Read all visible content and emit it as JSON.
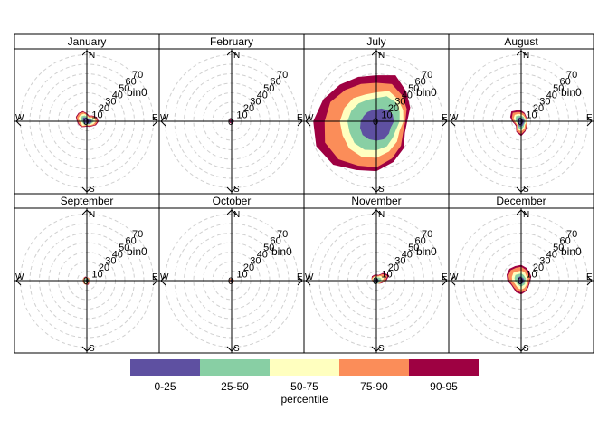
{
  "chart_data": {
    "type": "polar_percentile_rose",
    "panels": [
      {
        "title": "January",
        "compass": {
          "n": "N",
          "e": "E",
          "s": "S",
          "w": "W"
        },
        "radial_ticks": [
          "0",
          "10",
          "20",
          "30",
          "40",
          "50",
          "60",
          "70"
        ],
        "bin_label": "bin0",
        "bands": [
          {
            "band": "0-25",
            "radii": [
              3,
              2,
              3,
              4,
              5,
              4,
              3,
              2,
              2,
              2,
              3,
              3,
              3,
              4,
              5,
              4
            ]
          },
          {
            "band": "25-50",
            "radii": [
              4,
              3,
              4,
              6,
              7,
              5,
              4,
              3,
              3,
              3,
              4,
              4,
              5,
              6,
              7,
              6
            ]
          },
          {
            "band": "50-75",
            "radii": [
              6,
              4,
              5,
              8,
              9,
              7,
              5,
              4,
              3,
              4,
              6,
              6,
              7,
              9,
              9,
              8
            ]
          },
          {
            "band": "75-90",
            "radii": [
              7,
              5,
              7,
              10,
              11,
              9,
              6,
              5,
              4,
              5,
              7,
              8,
              9,
              11,
              11,
              10
            ]
          },
          {
            "band": "90-95",
            "radii": [
              8,
              6,
              8,
              11,
              12,
              10,
              7,
              6,
              5,
              6,
              8,
              9,
              10,
              12,
              12,
              11
            ]
          }
        ]
      },
      {
        "title": "February",
        "compass": {
          "n": "N",
          "e": "E",
          "s": "S",
          "w": "W"
        },
        "radial_ticks": [
          "0",
          "10",
          "20",
          "30",
          "40",
          "50",
          "60",
          "70"
        ],
        "bin_label": "",
        "bands": [
          {
            "band": "0-25",
            "radii": [
              1,
              1,
              1,
              1,
              1,
              1,
              1,
              1,
              1,
              1,
              1,
              1,
              1,
              1,
              1,
              1
            ]
          },
          {
            "band": "25-50",
            "radii": [
              1,
              1,
              1,
              1,
              1,
              1,
              1,
              1,
              1,
              1,
              1,
              1,
              1,
              1,
              1,
              1
            ]
          },
          {
            "band": "50-75",
            "radii": [
              1,
              1,
              1,
              1,
              1,
              1,
              1,
              1,
              1,
              1,
              1,
              1,
              1,
              1,
              1,
              1
            ]
          },
          {
            "band": "75-90",
            "radii": [
              1,
              1,
              1,
              1,
              1,
              1,
              1,
              1,
              1,
              1,
              1,
              1,
              1,
              1,
              1,
              1
            ]
          },
          {
            "band": "90-95",
            "radii": [
              2,
              2,
              2,
              2,
              2,
              2,
              2,
              2,
              2,
              2,
              2,
              2,
              2,
              2,
              2,
              2
            ]
          }
        ]
      },
      {
        "title": "July",
        "compass": {
          "n": "N",
          "e": "E",
          "s": "S",
          "w": "W"
        },
        "radial_ticks": [
          "0",
          "10",
          "20",
          "30",
          "40",
          "50",
          "60",
          "70"
        ],
        "bin_label": "bin0",
        "bands": [
          {
            "band": "0-25",
            "radii": [
              12,
              14,
              16,
              18,
              18,
              16,
              18,
              20,
              20,
              20,
              20,
              18,
              16,
              14,
              13,
              12
            ]
          },
          {
            "band": "25-50",
            "radii": [
              24,
              28,
              28,
              26,
              24,
              22,
              24,
              28,
              30,
              32,
              32,
              30,
              30,
              28,
              26,
              24
            ]
          },
          {
            "band": "50-75",
            "radii": [
              30,
              34,
              32,
              30,
              28,
              26,
              30,
              34,
              38,
              40,
              40,
              38,
              38,
              36,
              34,
              30
            ]
          },
          {
            "band": "75-90",
            "radii": [
              40,
              42,
              38,
              34,
              30,
              30,
              36,
              42,
              48,
              50,
              56,
              58,
              54,
              52,
              46,
              42
            ]
          },
          {
            "band": "90-95",
            "radii": [
              48,
              52,
              44,
              38,
              32,
              32,
              40,
              46,
              52,
              55,
              64,
              68,
              66,
              60,
              54,
              50
            ]
          }
        ]
      },
      {
        "title": "August",
        "compass": {
          "n": "N",
          "e": "E",
          "s": "S",
          "w": "W"
        },
        "radial_ticks": [
          "0",
          "10",
          "20",
          "30",
          "40",
          "50",
          "60",
          "70"
        ],
        "bin_label": "bin0",
        "bands": [
          {
            "band": "0-25",
            "radii": [
              3,
              3,
              3,
              3,
              3,
              3,
              3,
              4,
              5,
              5,
              3,
              3,
              3,
              4,
              4,
              4
            ]
          },
          {
            "band": "25-50",
            "radii": [
              5,
              5,
              4,
              4,
              4,
              4,
              4,
              6,
              8,
              7,
              4,
              4,
              5,
              6,
              7,
              6
            ]
          },
          {
            "band": "50-75",
            "radii": [
              7,
              6,
              5,
              5,
              5,
              5,
              5,
              8,
              10,
              9,
              5,
              5,
              6,
              8,
              9,
              8
            ]
          },
          {
            "band": "75-90",
            "radii": [
              9,
              8,
              6,
              6,
              6,
              6,
              7,
              10,
              13,
              11,
              6,
              6,
              8,
              10,
              12,
              10
            ]
          },
          {
            "band": "90-95",
            "radii": [
              11,
              9,
              7,
              6,
              6,
              6,
              8,
              11,
              15,
              12,
              7,
              7,
              9,
              12,
              14,
              12
            ]
          }
        ]
      },
      {
        "title": "September",
        "compass": {
          "n": "N",
          "e": "E",
          "s": "S",
          "w": "W"
        },
        "radial_ticks": [
          "0",
          "10",
          "20",
          "30",
          "40",
          "50",
          "60",
          "70"
        ],
        "bin_label": "bin0",
        "bands": [
          {
            "band": "0-25",
            "radii": [
              1,
              1,
              1,
              1,
              1,
              1,
              1,
              1,
              1,
              1,
              1,
              1,
              1,
              1,
              1,
              1
            ]
          },
          {
            "band": "25-50",
            "radii": [
              2,
              2,
              2,
              2,
              2,
              2,
              2,
              2,
              2,
              2,
              2,
              2,
              2,
              2,
              2,
              2
            ]
          },
          {
            "band": "50-75",
            "radii": [
              2,
              2,
              2,
              2,
              2,
              2,
              2,
              2,
              3,
              3,
              3,
              3,
              3,
              3,
              3,
              3
            ]
          },
          {
            "band": "75-90",
            "radii": [
              3,
              3,
              3,
              3,
              3,
              3,
              3,
              3,
              4,
              4,
              4,
              4,
              4,
              4,
              4,
              3
            ]
          },
          {
            "band": "90-95",
            "radii": [
              3,
              3,
              3,
              3,
              3,
              3,
              3,
              4,
              4,
              4,
              4,
              4,
              4,
              4,
              4,
              4
            ]
          }
        ]
      },
      {
        "title": "October",
        "compass": {
          "n": "N",
          "e": "E",
          "s": "S",
          "w": "W"
        },
        "radial_ticks": [
          "0",
          "10",
          "20",
          "30",
          "40",
          "50",
          "60",
          "70"
        ],
        "bin_label": "bin0",
        "bands": [
          {
            "band": "0-25",
            "radii": [
              1,
              1,
              1,
              1,
              1,
              1,
              1,
              1,
              1,
              1,
              1,
              1,
              1,
              1,
              1,
              1
            ]
          },
          {
            "band": "25-50",
            "radii": [
              1,
              1,
              1,
              1,
              1,
              1,
              1,
              1,
              1,
              1,
              1,
              1,
              1,
              1,
              1,
              1
            ]
          },
          {
            "band": "50-75",
            "radii": [
              1,
              1,
              1,
              1,
              1,
              1,
              1,
              1,
              1,
              1,
              1,
              1,
              1,
              1,
              1,
              1
            ]
          },
          {
            "band": "75-90",
            "radii": [
              2,
              2,
              2,
              2,
              2,
              2,
              2,
              2,
              2,
              2,
              2,
              2,
              2,
              2,
              2,
              2
            ]
          },
          {
            "band": "90-95",
            "radii": [
              2,
              2,
              2,
              2,
              2,
              2,
              2,
              2,
              2,
              2,
              2,
              2,
              2,
              2,
              2,
              2
            ]
          }
        ]
      },
      {
        "title": "November",
        "compass": {
          "n": "N",
          "e": "E",
          "s": "S",
          "w": "W"
        },
        "radial_ticks": [
          "0",
          "10",
          "20",
          "30",
          "40",
          "50",
          "60",
          "70"
        ],
        "bin_label": "bin0",
        "bands": [
          {
            "band": "0-25",
            "radii": [
              2,
              2,
              2,
              2,
              2,
              2,
              2,
              2,
              2,
              2,
              2,
              2,
              2,
              2,
              2,
              2
            ]
          },
          {
            "band": "25-50",
            "radii": [
              3,
              3,
              4,
              5,
              4,
              3,
              3,
              3,
              3,
              3,
              3,
              3,
              3,
              3,
              3,
              3
            ]
          },
          {
            "band": "50-75",
            "radii": [
              4,
              4,
              6,
              8,
              6,
              4,
              3,
              3,
              3,
              3,
              3,
              3,
              3,
              4,
              4,
              4
            ]
          },
          {
            "band": "75-90",
            "radii": [
              5,
              5,
              9,
              12,
              9,
              5,
              4,
              3,
              3,
              3,
              3,
              3,
              4,
              5,
              5,
              5
            ]
          },
          {
            "band": "90-95",
            "radii": [
              6,
              6,
              11,
              14,
              10,
              6,
              4,
              3,
              3,
              3,
              3,
              3,
              4,
              5,
              6,
              6
            ]
          }
        ]
      },
      {
        "title": "December",
        "compass": {
          "n": "N",
          "e": "E",
          "s": "S",
          "w": "W"
        },
        "radial_ticks": [
          "0",
          "10",
          "20",
          "30",
          "40",
          "50",
          "60",
          "70"
        ],
        "bin_label": "bin0",
        "bands": [
          {
            "band": "0-25",
            "radii": [
              4,
              3,
              3,
              3,
              3,
              3,
              3,
              3,
              3,
              3,
              3,
              3,
              3,
              3,
              4,
              4
            ]
          },
          {
            "band": "25-50",
            "radii": [
              7,
              6,
              5,
              5,
              4,
              4,
              5,
              5,
              6,
              5,
              5,
              5,
              6,
              7,
              8,
              7
            ]
          },
          {
            "band": "50-75",
            "radii": [
              10,
              9,
              7,
              7,
              6,
              6,
              7,
              8,
              9,
              8,
              7,
              7,
              9,
              10,
              11,
              10
            ]
          },
          {
            "band": "75-90",
            "radii": [
              14,
              12,
              10,
              10,
              8,
              8,
              9,
              11,
              12,
              11,
              10,
              10,
              12,
              14,
              15,
              14
            ]
          },
          {
            "band": "90-95",
            "radii": [
              16,
              14,
              12,
              11,
              9,
              9,
              10,
              12,
              14,
              13,
              11,
              11,
              14,
              16,
              17,
              16
            ]
          }
        ]
      }
    ],
    "legend": {
      "title": "percentile",
      "placement": "bottom",
      "entries": [
        {
          "label": "0-25",
          "color": "#5E50A1"
        },
        {
          "label": "25-50",
          "color": "#88CFA4"
        },
        {
          "label": "50-75",
          "color": "#FFFFBF"
        },
        {
          "label": "75-90",
          "color": "#FB8D59"
        },
        {
          "label": "90-95",
          "color": "#9E0142"
        }
      ]
    },
    "colors": {
      "panel_border": "#000000",
      "grid": "#d0d0d0",
      "band_outline": "#b2b2b2"
    }
  }
}
